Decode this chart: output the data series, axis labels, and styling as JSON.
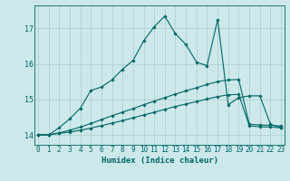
{
  "xlabel": "Humidex (Indice chaleur)",
  "bg_color": "#cce8ea",
  "grid_color": "#aacccc",
  "line_color": "#006666",
  "xlim": [
    -0.3,
    23.3
  ],
  "ylim": [
    13.72,
    17.65
  ],
  "yticks": [
    14,
    15,
    16,
    17
  ],
  "xticks": [
    0,
    1,
    2,
    3,
    4,
    5,
    6,
    7,
    8,
    9,
    10,
    11,
    12,
    13,
    14,
    15,
    16,
    17,
    18,
    19,
    20,
    21,
    22,
    23
  ],
  "line1_x": [
    0,
    1,
    2,
    3,
    4,
    5,
    6,
    7,
    8,
    9,
    10,
    11,
    12,
    13,
    14,
    15,
    16,
    17,
    18,
    19,
    20,
    21,
    22,
    23
  ],
  "line1_y": [
    14.0,
    14.0,
    14.2,
    14.45,
    14.75,
    15.25,
    15.35,
    15.55,
    15.85,
    16.1,
    16.65,
    17.05,
    17.35,
    16.85,
    16.55,
    16.05,
    15.95,
    17.25,
    14.85,
    15.05,
    15.1,
    15.1,
    14.3,
    14.2
  ],
  "line2_x": [
    0,
    1,
    2,
    3,
    4,
    5,
    6,
    7,
    8,
    9,
    10,
    11,
    12,
    13,
    14,
    15,
    16,
    17,
    18,
    19,
    20,
    21,
    22,
    23
  ],
  "line2_y": [
    14.0,
    14.0,
    14.06,
    14.13,
    14.22,
    14.32,
    14.43,
    14.54,
    14.64,
    14.74,
    14.85,
    14.95,
    15.05,
    15.15,
    15.24,
    15.33,
    15.42,
    15.5,
    15.55,
    15.56,
    14.3,
    14.28,
    14.27,
    14.25
  ],
  "line3_x": [
    0,
    1,
    2,
    3,
    4,
    5,
    6,
    7,
    8,
    9,
    10,
    11,
    12,
    13,
    14,
    15,
    16,
    17,
    18,
    19,
    20,
    21,
    22,
    23
  ],
  "line3_y": [
    14.0,
    14.0,
    14.04,
    14.08,
    14.13,
    14.19,
    14.26,
    14.33,
    14.4,
    14.48,
    14.56,
    14.64,
    14.72,
    14.8,
    14.87,
    14.94,
    15.01,
    15.08,
    15.13,
    15.14,
    14.25,
    14.23,
    14.22,
    14.2
  ]
}
